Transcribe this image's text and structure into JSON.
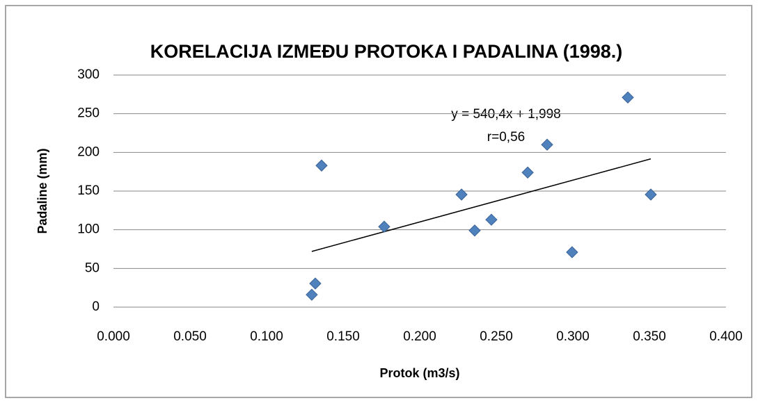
{
  "chart_data": {
    "type": "scatter",
    "title": "KORELACIJA IZMEĐU PROTOKA I PADALINA (1998.)",
    "xlabel": "Protok (m3/s)",
    "ylabel": "Padaline (mm)",
    "series": [
      {
        "color": "#4f81bd",
        "x": [
          0.1295,
          0.1318,
          0.1359,
          0.1768,
          0.2273,
          0.2359,
          0.2468,
          0.2705,
          0.2832,
          0.2995,
          0.3359,
          0.3509
        ],
        "values": [
          16,
          30.5,
          183,
          104,
          145.5,
          99,
          113,
          174,
          210,
          71,
          271,
          145.5
        ]
      }
    ],
    "trendline": {
      "slope": 540.4,
      "intercept": 1.998,
      "label": "y = 540,4x + 1,998",
      "color": "#000000"
    },
    "annotations": [
      "r=0,56"
    ],
    "xlim": [
      0,
      0.4
    ],
    "xticks": [
      {
        "value": 0,
        "label": "0.000"
      },
      {
        "value": 0.05,
        "label": "0.050"
      },
      {
        "value": 0.1,
        "label": "0.100"
      },
      {
        "value": 0.15,
        "label": "0.150"
      },
      {
        "value": 0.2,
        "label": "0.200"
      },
      {
        "value": 0.25,
        "label": "0.250"
      },
      {
        "value": 0.3,
        "label": "0.300"
      },
      {
        "value": 0.35,
        "label": "0.350"
      },
      {
        "value": 0.4,
        "label": "0.400"
      }
    ],
    "ylim": [
      0,
      300
    ],
    "yticks": [
      0,
      50,
      100,
      150,
      200,
      250,
      300
    ],
    "grid": true
  }
}
